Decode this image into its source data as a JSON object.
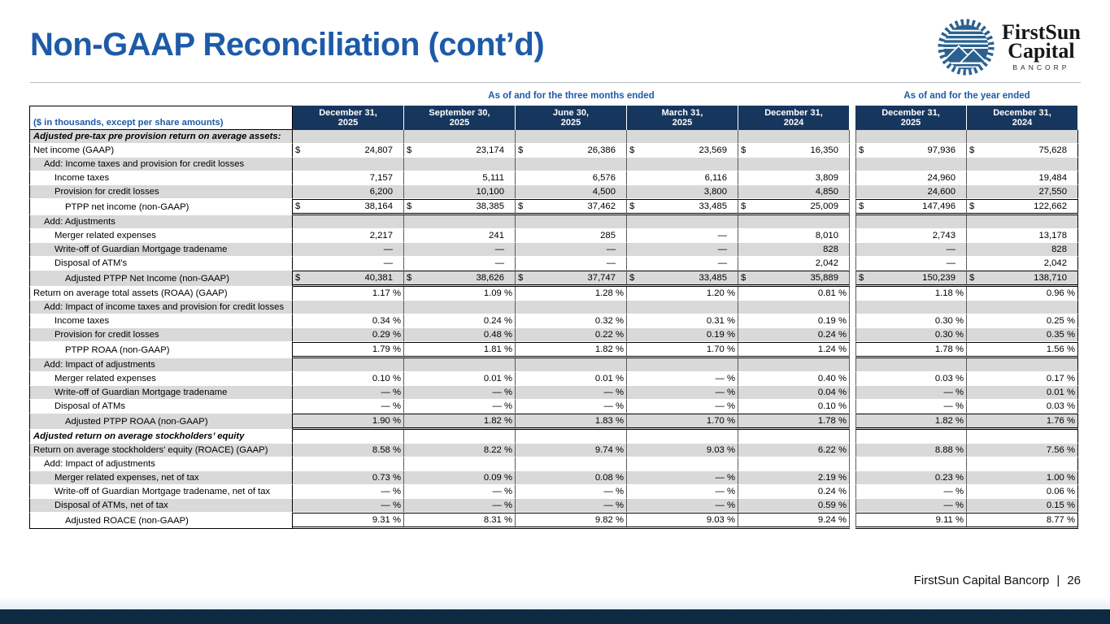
{
  "slide": {
    "title": "Non-GAAP Reconciliation (cont’d)",
    "footer": {
      "company": "FirstSun Capital Bancorp",
      "separator": "|",
      "page_number": "26"
    }
  },
  "logo": {
    "line1": "FirstSun",
    "line2": "Capital",
    "line3": "BANCORP"
  },
  "colors": {
    "title_blue": "#1d5ba8",
    "header_navy": "#17365d",
    "row_gray": "#d9d9d9",
    "logo_blue": "#2b6190",
    "bottom_bar_navy": "#0d2a42"
  },
  "table": {
    "label_header": "($ in thousands, except per share amounts)",
    "currency_symbol": "$",
    "percent_symbol": "%",
    "dash": "—",
    "column_groups": [
      {
        "label": "As of and for the three months ended",
        "columns": [
          {
            "line1": "December 31,",
            "line2": "2025"
          },
          {
            "line1": "September 30,",
            "line2": "2025"
          },
          {
            "line1": "June 30,",
            "line2": "2025"
          },
          {
            "line1": "March 31,",
            "line2": "2025"
          },
          {
            "line1": "December 31,",
            "line2": "2024"
          }
        ]
      },
      {
        "label": "As of and for the year ended",
        "columns": [
          {
            "line1": "December 31,",
            "line2": "2025"
          },
          {
            "line1": "December 31,",
            "line2": "2024"
          }
        ]
      }
    ],
    "rows": [
      {
        "label": "Adjusted pre-tax pre provision return on average assets:",
        "style": "section",
        "indent": 0,
        "format": "none",
        "values": [
          "",
          "",
          "",
          "",
          "",
          "",
          ""
        ]
      },
      {
        "label": "Net income (GAAP)",
        "style": "data",
        "indent": 0,
        "format": "money",
        "values": [
          "24,807",
          "23,174",
          "26,386",
          "23,569",
          "16,350",
          "97,936",
          "75,628"
        ]
      },
      {
        "label": "Add: Income taxes and provision for credit losses",
        "style": "data",
        "indent": 1,
        "format": "none",
        "values": [
          "",
          "",
          "",
          "",
          "",
          "",
          ""
        ]
      },
      {
        "label": "Income taxes",
        "style": "data",
        "indent": 2,
        "format": "number",
        "values": [
          "7,157",
          "5,111",
          "6,576",
          "6,116",
          "3,809",
          "24,960",
          "19,484"
        ]
      },
      {
        "label": "Provision for credit losses",
        "style": "data",
        "indent": 2,
        "format": "number",
        "values": [
          "6,200",
          "10,100",
          "4,500",
          "3,800",
          "4,850",
          "24,600",
          "27,550"
        ]
      },
      {
        "label": "PTPP net income (non-GAAP)",
        "style": "data",
        "indent": 3,
        "format": "money",
        "total": true,
        "values": [
          "38,164",
          "38,385",
          "37,462",
          "33,485",
          "25,009",
          "147,496",
          "122,662"
        ]
      },
      {
        "label": "Add: Adjustments",
        "style": "data",
        "indent": 1,
        "format": "none",
        "values": [
          "",
          "",
          "",
          "",
          "",
          "",
          ""
        ]
      },
      {
        "label": "Merger related expenses",
        "style": "data",
        "indent": 2,
        "format": "number",
        "values": [
          "2,217",
          "241",
          "285",
          "—",
          "8,010",
          "2,743",
          "13,178"
        ]
      },
      {
        "label": "Write-off of Guardian Mortgage tradename",
        "style": "data",
        "indent": 2,
        "format": "number",
        "values": [
          "—",
          "—",
          "—",
          "—",
          "828",
          "—",
          "828"
        ]
      },
      {
        "label": "Disposal of ATM's",
        "style": "data",
        "indent": 2,
        "format": "number",
        "values": [
          "—",
          "—",
          "—",
          "—",
          "2,042",
          "—",
          "2,042"
        ]
      },
      {
        "label": "Adjusted PTPP Net Income (non-GAAP)",
        "style": "data",
        "indent": 3,
        "format": "money",
        "total": true,
        "values": [
          "40,381",
          "38,626",
          "37,747",
          "33,485",
          "35,889",
          "150,239",
          "138,710"
        ]
      },
      {
        "label": "Return on average total assets (ROAA) (GAAP)",
        "style": "data",
        "indent": 0,
        "format": "pct",
        "values": [
          "1.17",
          "1.09",
          "1.28",
          "1.20",
          "0.81",
          "1.18",
          "0.96"
        ]
      },
      {
        "label": "Add: Impact of income taxes and provision for credit losses",
        "style": "data",
        "indent": 1,
        "format": "none",
        "values": [
          "",
          "",
          "",
          "",
          "",
          "",
          ""
        ]
      },
      {
        "label": "Income taxes",
        "style": "data",
        "indent": 2,
        "format": "pct",
        "values": [
          "0.34",
          "0.24",
          "0.32",
          "0.31",
          "0.19",
          "0.30",
          "0.25"
        ]
      },
      {
        "label": "Provision for credit losses",
        "style": "data",
        "indent": 2,
        "format": "pct",
        "values": [
          "0.29",
          "0.48",
          "0.22",
          "0.19",
          "0.24",
          "0.30",
          "0.35"
        ]
      },
      {
        "label": "PTPP ROAA (non-GAAP)",
        "style": "data",
        "indent": 3,
        "format": "pct",
        "total": true,
        "values": [
          "1.79",
          "1.81",
          "1.82",
          "1.70",
          "1.24",
          "1.78",
          "1.56"
        ]
      },
      {
        "label": "Add: Impact of adjustments",
        "style": "data",
        "indent": 1,
        "format": "none",
        "values": [
          "",
          "",
          "",
          "",
          "",
          "",
          ""
        ]
      },
      {
        "label": "Merger related expenses",
        "style": "data",
        "indent": 2,
        "format": "pct",
        "values": [
          "0.10",
          "0.01",
          "0.01",
          "—",
          "0.40",
          "0.03",
          "0.17"
        ]
      },
      {
        "label": "Write-off of Guardian Mortgage tradename",
        "style": "data",
        "indent": 2,
        "format": "pct",
        "values": [
          "—",
          "—",
          "—",
          "—",
          "0.04",
          "—",
          "0.01"
        ]
      },
      {
        "label": "Disposal of ATMs",
        "style": "data",
        "indent": 2,
        "format": "pct",
        "values": [
          "—",
          "—",
          "—",
          "—",
          "0.10",
          "—",
          "0.03"
        ]
      },
      {
        "label": "Adjusted PTPP ROAA (non-GAAP)",
        "style": "data",
        "indent": 3,
        "format": "pct",
        "total": true,
        "values": [
          "1.90",
          "1.82",
          "1.83",
          "1.70",
          "1.78",
          "1.82",
          "1.76"
        ]
      },
      {
        "label": "Adjusted return on average stockholders’ equity",
        "style": "section",
        "indent": 0,
        "format": "none",
        "values": [
          "",
          "",
          "",
          "",
          "",
          "",
          ""
        ]
      },
      {
        "label": "Return on average stockholders' equity (ROACE) (GAAP)",
        "style": "data",
        "indent": 0,
        "format": "pct",
        "values": [
          "8.58",
          "8.22",
          "9.74",
          "9.03",
          "6.22",
          "8.88",
          "7.56"
        ]
      },
      {
        "label": "Add: Impact of adjustments",
        "style": "data",
        "indent": 1,
        "format": "none",
        "values": [
          "",
          "",
          "",
          "",
          "",
          "",
          ""
        ]
      },
      {
        "label": "Merger related expenses, net of tax",
        "style": "data",
        "indent": 2,
        "format": "pct",
        "values": [
          "0.73",
          "0.09",
          "0.08",
          "—",
          "2.19",
          "0.23",
          "1.00"
        ]
      },
      {
        "label": "Write-off of Guardian Mortgage tradename, net of tax",
        "style": "data",
        "indent": 2,
        "format": "pct",
        "values": [
          "—",
          "—",
          "—",
          "—",
          "0.24",
          "—",
          "0.06"
        ]
      },
      {
        "label": "Disposal of ATMs, net of tax",
        "style": "data",
        "indent": 2,
        "format": "pct",
        "values": [
          "—",
          "—",
          "—",
          "—",
          "0.59",
          "—",
          "0.15"
        ]
      },
      {
        "label": "Adjusted ROACE (non-GAAP)",
        "style": "data",
        "indent": 3,
        "format": "pct",
        "total": true,
        "values": [
          "9.31",
          "8.31",
          "9.82",
          "9.03",
          "9.24",
          "9.11",
          "8.77"
        ]
      }
    ]
  }
}
